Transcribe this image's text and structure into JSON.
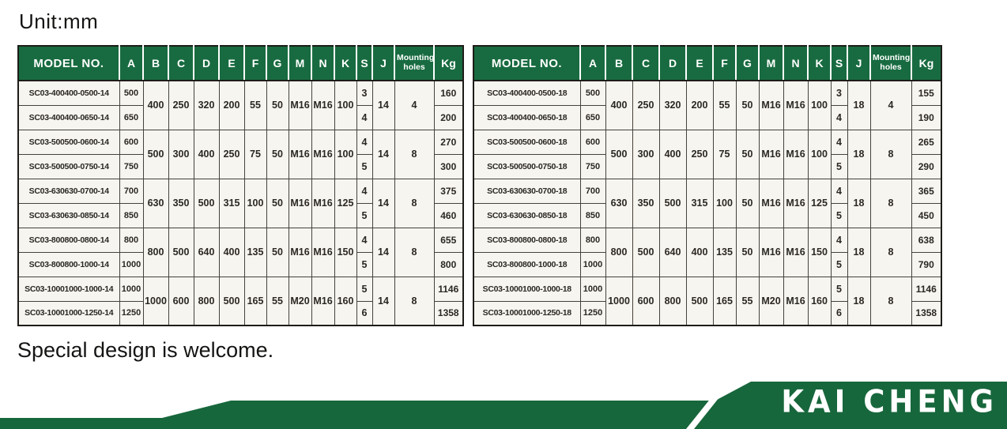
{
  "unit_label": "Unit:mm",
  "footer_note": "Special design is welcome.",
  "brand": "KAI CHENG",
  "colors": {
    "green": "#186b40",
    "table_bg": "#f7f5ef",
    "line": "#45423c"
  },
  "tables": [
    {
      "name": "spec-table-14",
      "headers": [
        "MODEL NO.",
        "A",
        "B",
        "C",
        "D",
        "E",
        "F",
        "G",
        "M",
        "N",
        "K",
        "S",
        "J",
        "Mounting holes",
        "Kg"
      ],
      "groups": [
        {
          "shared": {
            "B": "400",
            "C": "250",
            "D": "320",
            "E": "200",
            "F": "55",
            "G": "50",
            "M": "M16",
            "N": "M16",
            "K": "100",
            "J": "14",
            "holes": "4"
          },
          "rows": [
            {
              "model": "SC03-400400-0500-14",
              "A": "500",
              "S": "3",
              "Kg": "160"
            },
            {
              "model": "SC03-400400-0650-14",
              "A": "650",
              "S": "4",
              "Kg": "200"
            }
          ]
        },
        {
          "shared": {
            "B": "500",
            "C": "300",
            "D": "400",
            "E": "250",
            "F": "75",
            "G": "50",
            "M": "M16",
            "N": "M16",
            "K": "100",
            "J": "14",
            "holes": "8"
          },
          "rows": [
            {
              "model": "SC03-500500-0600-14",
              "A": "600",
              "S": "4",
              "Kg": "270"
            },
            {
              "model": "SC03-500500-0750-14",
              "A": "750",
              "S": "5",
              "Kg": "300"
            }
          ]
        },
        {
          "shared": {
            "B": "630",
            "C": "350",
            "D": "500",
            "E": "315",
            "F": "100",
            "G": "50",
            "M": "M16",
            "N": "M16",
            "K": "125",
            "J": "14",
            "holes": "8"
          },
          "rows": [
            {
              "model": "SC03-630630-0700-14",
              "A": "700",
              "S": "4",
              "Kg": "375"
            },
            {
              "model": "SC03-630630-0850-14",
              "A": "850",
              "S": "5",
              "Kg": "460"
            }
          ]
        },
        {
          "shared": {
            "B": "800",
            "C": "500",
            "D": "640",
            "E": "400",
            "F": "135",
            "G": "50",
            "M": "M16",
            "N": "M16",
            "K": "150",
            "J": "14",
            "holes": "8"
          },
          "rows": [
            {
              "model": "SC03-800800-0800-14",
              "A": "800",
              "S": "4",
              "Kg": "655"
            },
            {
              "model": "SC03-800800-1000-14",
              "A": "1000",
              "S": "5",
              "Kg": "800"
            }
          ]
        },
        {
          "shared": {
            "B": "1000",
            "C": "600",
            "D": "800",
            "E": "500",
            "F": "165",
            "G": "55",
            "M": "M20",
            "N": "M16",
            "K": "160",
            "J": "14",
            "holes": "8"
          },
          "rows": [
            {
              "model": "SC03-10001000-1000-14",
              "A": "1000",
              "S": "5",
              "Kg": "1146"
            },
            {
              "model": "SC03-10001000-1250-14",
              "A": "1250",
              "S": "6",
              "Kg": "1358"
            }
          ]
        }
      ]
    },
    {
      "name": "spec-table-18",
      "headers": [
        "MODEL NO.",
        "A",
        "B",
        "C",
        "D",
        "E",
        "F",
        "G",
        "M",
        "N",
        "K",
        "S",
        "J",
        "Mounting holes",
        "Kg"
      ],
      "groups": [
        {
          "shared": {
            "B": "400",
            "C": "250",
            "D": "320",
            "E": "200",
            "F": "55",
            "G": "50",
            "M": "M16",
            "N": "M16",
            "K": "100",
            "J": "18",
            "holes": "4"
          },
          "rows": [
            {
              "model": "SC03-400400-0500-18",
              "A": "500",
              "S": "3",
              "Kg": "155"
            },
            {
              "model": "SC03-400400-0650-18",
              "A": "650",
              "S": "4",
              "Kg": "190"
            }
          ]
        },
        {
          "shared": {
            "B": "500",
            "C": "300",
            "D": "400",
            "E": "250",
            "F": "75",
            "G": "50",
            "M": "M16",
            "N": "M16",
            "K": "100",
            "J": "18",
            "holes": "8"
          },
          "rows": [
            {
              "model": "SC03-500500-0600-18",
              "A": "600",
              "S": "4",
              "Kg": "265"
            },
            {
              "model": "SC03-500500-0750-18",
              "A": "750",
              "S": "5",
              "Kg": "290"
            }
          ]
        },
        {
          "shared": {
            "B": "630",
            "C": "350",
            "D": "500",
            "E": "315",
            "F": "100",
            "G": "50",
            "M": "M16",
            "N": "M16",
            "K": "125",
            "J": "18",
            "holes": "8"
          },
          "rows": [
            {
              "model": "SC03-630630-0700-18",
              "A": "700",
              "S": "4",
              "Kg": "365"
            },
            {
              "model": "SC03-630630-0850-18",
              "A": "850",
              "S": "5",
              "Kg": "450"
            }
          ]
        },
        {
          "shared": {
            "B": "800",
            "C": "500",
            "D": "640",
            "E": "400",
            "F": "135",
            "G": "50",
            "M": "M16",
            "N": "M16",
            "K": "150",
            "J": "18",
            "holes": "8"
          },
          "rows": [
            {
              "model": "SC03-800800-0800-18",
              "A": "800",
              "S": "4",
              "Kg": "638"
            },
            {
              "model": "SC03-800800-1000-18",
              "A": "1000",
              "S": "5",
              "Kg": "790"
            }
          ]
        },
        {
          "shared": {
            "B": "1000",
            "C": "600",
            "D": "800",
            "E": "500",
            "F": "165",
            "G": "55",
            "M": "M20",
            "N": "M16",
            "K": "160",
            "J": "18",
            "holes": "8"
          },
          "rows": [
            {
              "model": "SC03-10001000-1000-18",
              "A": "1000",
              "S": "5",
              "Kg": "1146"
            },
            {
              "model": "SC03-10001000-1250-18",
              "A": "1250",
              "S": "6",
              "Kg": "1358"
            }
          ]
        }
      ]
    }
  ]
}
